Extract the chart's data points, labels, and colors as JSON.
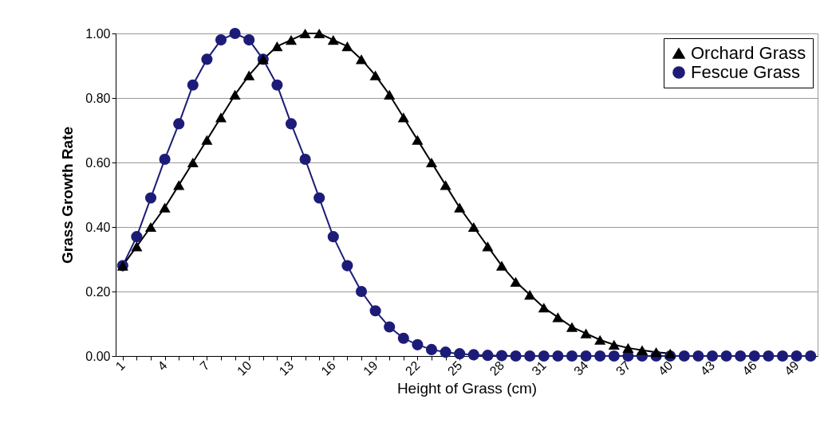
{
  "chart_data": {
    "type": "line",
    "xlabel": "Height of Grass (cm)",
    "ylabel": "Grass Growth Rate",
    "categories": [
      "1",
      null,
      null,
      "4",
      null,
      null,
      "7",
      null,
      null,
      "10",
      null,
      null,
      "13",
      null,
      null,
      "16",
      null,
      null,
      "19",
      null,
      null,
      "22",
      null,
      null,
      "25",
      null,
      null,
      "28",
      null,
      null,
      "31",
      null,
      null,
      "34",
      null,
      null,
      "37",
      null,
      null,
      "40",
      null,
      null,
      "43",
      null,
      null,
      "46",
      null,
      null,
      "49",
      null
    ],
    "series": [
      {
        "name": "Orchard Grass",
        "color": "#000000",
        "marker": "triangle",
        "values": [
          0.28,
          0.34,
          0.4,
          0.46,
          0.53,
          0.6,
          0.67,
          0.74,
          0.81,
          0.87,
          0.92,
          0.96,
          0.98,
          1.0,
          1.0,
          0.98,
          0.96,
          0.92,
          0.87,
          0.81,
          0.74,
          0.67,
          0.6,
          0.53,
          0.46,
          0.4,
          0.34,
          0.28,
          0.23,
          0.19,
          0.15,
          0.12,
          0.09,
          0.07,
          0.05,
          0.035,
          0.025,
          0.018,
          0.012,
          0.008,
          null,
          null,
          null,
          null,
          null,
          null,
          null,
          null,
          null,
          null
        ]
      },
      {
        "name": "Fescue Grass",
        "color": "#1c1c78",
        "marker": "circle",
        "values": [
          0.28,
          0.37,
          0.49,
          0.61,
          0.72,
          0.84,
          0.92,
          0.98,
          1.0,
          0.98,
          0.92,
          0.84,
          0.72,
          0.61,
          0.49,
          0.37,
          0.28,
          0.2,
          0.14,
          0.09,
          0.055,
          0.035,
          0.02,
          0.012,
          0.007,
          0.004,
          0.002,
          0.001,
          0,
          0,
          0,
          0,
          0,
          0,
          0,
          0,
          0,
          0,
          0,
          0,
          0,
          0,
          0,
          0,
          0,
          0,
          0,
          0,
          0,
          0
        ]
      }
    ],
    "ylim": [
      0,
      1
    ],
    "yticks": [
      {
        "value": 0,
        "label": "0.00"
      },
      {
        "value": 0.2,
        "label": "0.20"
      },
      {
        "value": 0.4,
        "label": "0.40"
      },
      {
        "value": 0.6,
        "label": "0.60"
      },
      {
        "value": 0.8,
        "label": "0.80"
      },
      {
        "value": 1,
        "label": "1.00"
      }
    ],
    "grid": "y",
    "legend": "top right",
    "line_style": "solid"
  }
}
